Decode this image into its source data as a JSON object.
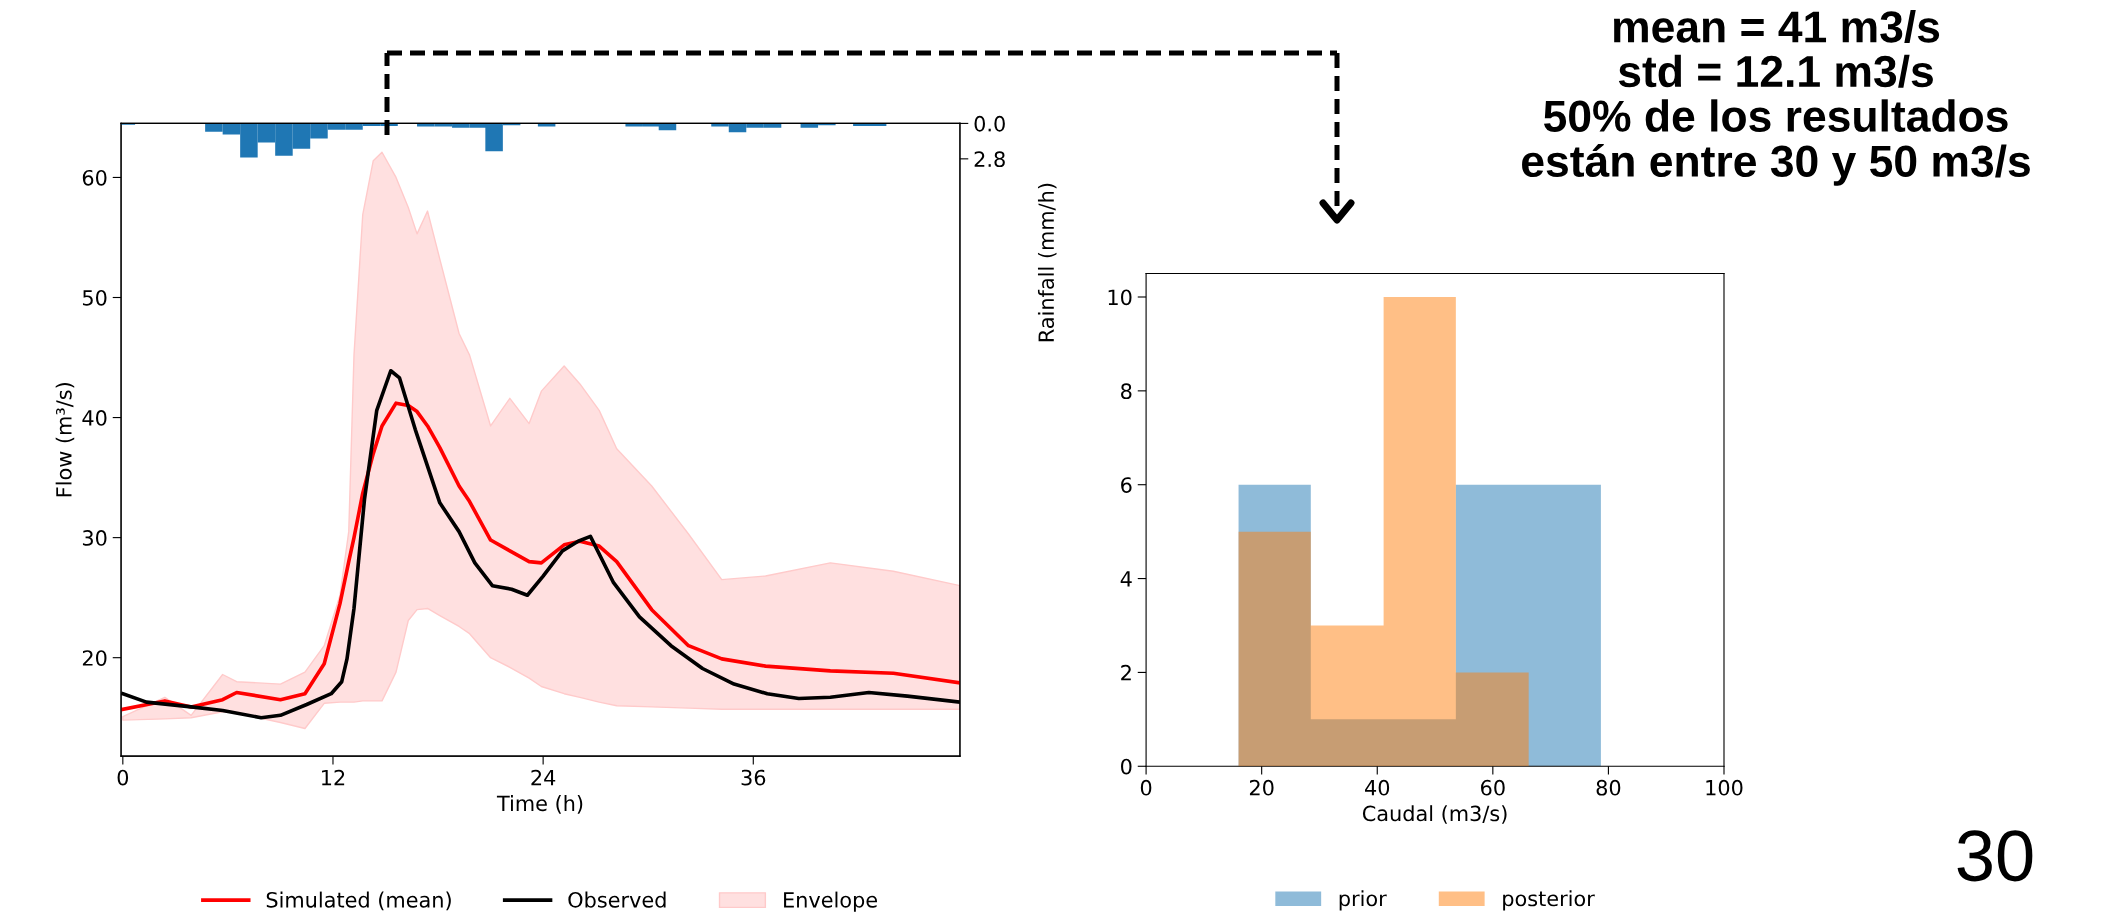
{
  "chart_data": [
    {
      "type": "line",
      "xlabel": "Time (h)",
      "ylabel": "Flow (m³/s)",
      "y2label": "Rainfall (mm/h)",
      "xlim": [
        -0.1,
        47.8
      ],
      "xticks": [
        0,
        12,
        24,
        36
      ],
      "ylim": [
        11.8,
        64.5
      ],
      "yticks": [
        20,
        30,
        40,
        50,
        60
      ],
      "y2lim": [
        50,
        0
      ],
      "y2ticks": [
        {
          "value": 0,
          "label": "0.0"
        },
        2.8
      ],
      "legend": "bottom",
      "series": [
        {
          "type": "line",
          "name": "Simulated (mean)",
          "color": "#ff0000",
          "x": [
            0,
            2.4,
            3.9,
            5.7,
            6.5,
            9,
            10.4,
            11.5,
            12.4,
            12.9,
            13.2,
            13.7,
            14.3,
            14.8,
            15.6,
            16.3,
            16.8,
            17.4,
            18.1,
            19.2,
            19.8,
            21.0,
            22.1,
            23.2,
            23.9,
            25.2,
            26.1,
            27.2,
            28.2,
            30.2,
            32.3,
            34.2,
            36.7,
            40.4,
            44.0,
            47.8
          ],
          "values": [
            15.7,
            16.4,
            15.9,
            16.5,
            17.1,
            16.5,
            17.0,
            19.5,
            24.5,
            28.0,
            30.0,
            33.7,
            37.0,
            39.3,
            41.2,
            41.0,
            40.5,
            39.3,
            37.5,
            34.3,
            33.0,
            29.8,
            28.9,
            28.0,
            27.9,
            29.4,
            29.7,
            29.3,
            28.0,
            24.0,
            21.0,
            19.9,
            19.3,
            18.9,
            18.7,
            17.9
          ]
        },
        {
          "type": "line",
          "name": "Envelope",
          "color": "#ffe0e0",
          "x": [
            0,
            2.4,
            3.9,
            5.7,
            6.5,
            9,
            10.4,
            11.5,
            12.4,
            12.9,
            13.2,
            13.7,
            14.3,
            14.8,
            15.6,
            16.3,
            16.8,
            17.4,
            18.1,
            19.2,
            19.8,
            21.0,
            22.1,
            23.2,
            23.9,
            25.2,
            26.1,
            27.2,
            28.2,
            30.2,
            32.3,
            34.2,
            36.7,
            40.4,
            44.0,
            47.8
          ],
          "values": [
            null,
            null,
            null,
            null,
            null,
            null,
            null,
            null,
            null,
            null,
            null,
            null,
            null,
            null,
            null,
            null,
            null,
            null,
            null,
            null,
            null,
            null,
            null,
            null,
            null,
            null,
            null,
            null,
            null,
            null,
            null,
            null,
            null,
            null,
            null,
            null
          ],
          "upper": [
            15.1,
            16.7,
            15.2,
            18.6,
            18.0,
            17.8,
            18.8,
            21.0,
            25.2,
            30.5,
            45.2,
            56.9,
            61.4,
            62.1,
            60.0,
            57.5,
            55.3,
            57.2,
            53.2,
            47.0,
            45.2,
            39.3,
            41.6,
            39.5,
            42.2,
            44.3,
            42.8,
            40.6,
            37.4,
            34.3,
            30.3,
            26.5,
            26.8,
            27.9,
            27.2,
            26.0
          ],
          "lower": [
            14.8,
            14.9,
            15.0,
            15.5,
            15.4,
            14.6,
            14.1,
            16.2,
            16.3,
            16.3,
            16.3,
            16.4,
            16.4,
            16.4,
            18.8,
            23.1,
            24.0,
            24.1,
            23.5,
            22.6,
            22.0,
            20.0,
            19.2,
            18.3,
            17.6,
            17.0,
            16.7,
            16.3,
            16.0,
            15.9,
            15.8,
            15.7,
            15.7,
            15.7,
            15.7,
            15.7
          ]
        },
        {
          "type": "line",
          "name": "Observed",
          "color": "#000000",
          "x": [
            0,
            1.35,
            3.9,
            5.7,
            7.9,
            9.0,
            10.5,
            11.9,
            12.5,
            12.8,
            13.2,
            13.8,
            14.5,
            15.3,
            15.8,
            16.7,
            18.1,
            19.2,
            20.1,
            21.1,
            22.2,
            23.1,
            24.0,
            25.1,
            26.0,
            26.7,
            28.0,
            29.5,
            31.3,
            33.1,
            34.9,
            36.8,
            38.6,
            40.4,
            42.6,
            44.8,
            47.8
          ],
          "values": [
            17.0,
            16.3,
            15.9,
            15.6,
            15.0,
            15.2,
            16.1,
            17.0,
            18.0,
            19.9,
            24.1,
            33.2,
            40.6,
            43.9,
            43.3,
            39.0,
            32.9,
            30.5,
            27.9,
            26.0,
            25.7,
            25.2,
            26.8,
            28.9,
            29.7,
            30.1,
            26.3,
            23.4,
            21.0,
            19.1,
            17.8,
            17.0,
            16.6,
            16.7,
            17.1,
            16.8,
            16.3
          ]
        },
        {
          "type": "bar",
          "axis": "y2",
          "color": "#1f77b4",
          "x": [
            0.2,
            5.2,
            6.2,
            7.2,
            8.2,
            9.2,
            10.2,
            11.2,
            12.2,
            13.2,
            14.2,
            15.2,
            17.3,
            18.3,
            19.3,
            20.3,
            21.2,
            22.2,
            24.2,
            29.2,
            30.2,
            31.1,
            34.1,
            35.1,
            36.1,
            37.1,
            39.2,
            40.2,
            42.2,
            43.1
          ],
          "values": [
            0.1,
            0.66,
            0.87,
            2.7,
            1.5,
            2.55,
            2.0,
            1.2,
            0.5,
            0.5,
            0.2,
            0.2,
            0.25,
            0.25,
            0.35,
            0.35,
            2.2,
            0.15,
            0.25,
            0.25,
            0.25,
            0.55,
            0.25,
            0.7,
            0.35,
            0.35,
            0.35,
            0.15,
            0.2,
            0.2
          ]
        }
      ]
    },
    {
      "type": "histogram",
      "xlabel": "Caudal (m3/s)",
      "xlim": [
        0,
        100
      ],
      "xticks": [
        0,
        20,
        40,
        60,
        80,
        100
      ],
      "ylim": [
        0,
        10.5
      ],
      "yticks": [
        0,
        2,
        4,
        6,
        8,
        10
      ],
      "legend": "bottom",
      "bins": [
        16.0,
        28.5,
        41.1,
        53.6,
        66.2,
        78.7
      ],
      "series": [
        {
          "name": "prior",
          "color": "#1f77b4",
          "values": [
            6,
            1,
            1,
            6,
            6
          ]
        },
        {
          "name": "posterior",
          "color": "#ff7f0e",
          "values": [
            5,
            3,
            10,
            2,
            0
          ]
        }
      ],
      "annotations": [
        "mean = 41 m3/s\nstd = 12.1 m3/s\n50% de los resultados\nestán entre 30 y 50 m3/s",
        "30"
      ]
    }
  ]
}
